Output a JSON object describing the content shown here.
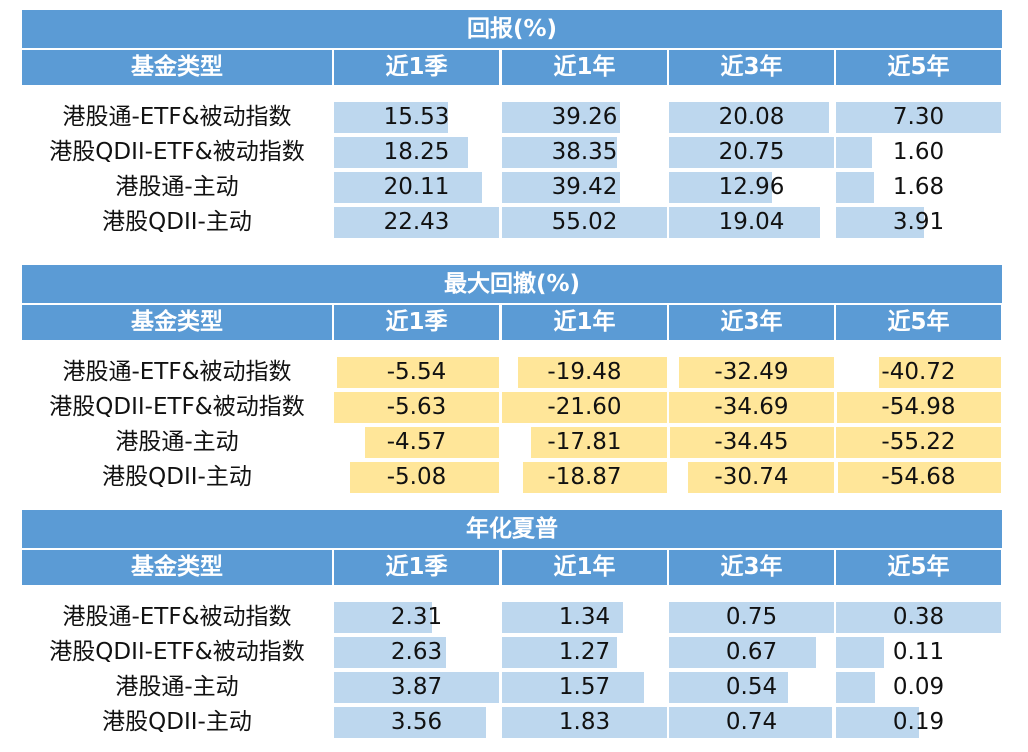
{
  "chart_data": [
    {
      "type": "table",
      "title": "回报(%)",
      "header_label": "基金类型",
      "columns": [
        "近1季",
        "近1年",
        "近3年",
        "近5年"
      ],
      "rows": [
        "港股通-ETF&被动指数",
        "港股QDII-ETF&被动指数",
        "港股通-主动",
        "港股QDII-主动"
      ],
      "values": [
        [
          "15.53",
          "39.26",
          "20.08",
          "7.30"
        ],
        [
          "18.25",
          "38.35",
          "20.75",
          "1.60"
        ],
        [
          "20.11",
          "39.42",
          "12.96",
          "1.68"
        ],
        [
          "22.43",
          "55.02",
          "19.04",
          "3.91"
        ]
      ],
      "bar_color": "#bdd7ee",
      "bar_direction": "left"
    },
    {
      "type": "table",
      "title": "最大回撤(%)",
      "header_label": "基金类型",
      "columns": [
        "近1季",
        "近1年",
        "近3年",
        "近5年"
      ],
      "rows": [
        "港股通-ETF&被动指数",
        "港股QDII-ETF&被动指数",
        "港股通-主动",
        "港股QDII-主动"
      ],
      "values": [
        [
          "-5.54",
          "-19.48",
          "-32.49",
          "-40.72"
        ],
        [
          "-5.63",
          "-21.60",
          "-34.69",
          "-54.98"
        ],
        [
          "-4.57",
          "-17.81",
          "-34.45",
          "-55.22"
        ],
        [
          "-5.08",
          "-18.87",
          "-30.74",
          "-54.68"
        ]
      ],
      "bar_color": "#ffe699",
      "bar_direction": "right"
    },
    {
      "type": "table",
      "title": "年化夏普",
      "header_label": "基金类型",
      "columns": [
        "近1季",
        "近1年",
        "近3年",
        "近5年"
      ],
      "rows": [
        "港股通-ETF&被动指数",
        "港股QDII-ETF&被动指数",
        "港股通-主动",
        "港股QDII-主动"
      ],
      "values": [
        [
          "2.31",
          "1.34",
          "0.75",
          "0.38"
        ],
        [
          "2.63",
          "1.27",
          "0.67",
          "0.11"
        ],
        [
          "3.87",
          "1.57",
          "0.54",
          "0.09"
        ],
        [
          "3.56",
          "1.83",
          "0.74",
          "0.19"
        ]
      ],
      "bar_color": "#bdd7ee",
      "bar_direction": "left"
    }
  ],
  "colors": {
    "header": "#5b9bd5",
    "header_text": "#ffffff",
    "text": "#111111"
  }
}
